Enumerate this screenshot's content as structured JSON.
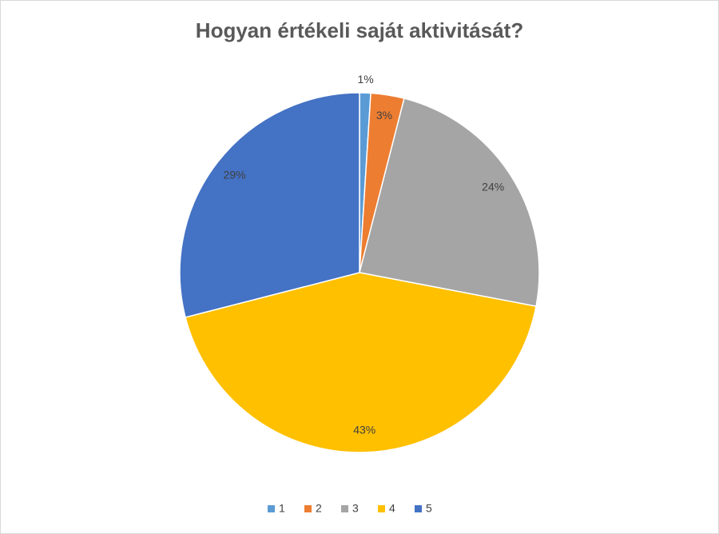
{
  "chart_data": {
    "type": "pie",
    "title": "Hogyan értékeli saját aktivitását?",
    "categories": [
      "1",
      "2",
      "3",
      "4",
      "5"
    ],
    "values": [
      1,
      3,
      24,
      43,
      29
    ],
    "value_labels": [
      "1%",
      "3%",
      "24%",
      "43%",
      "29%"
    ],
    "colors": [
      "#5b9bd5",
      "#ed7d31",
      "#a5a5a5",
      "#ffc000",
      "#4472c4"
    ],
    "legend": "bottom"
  }
}
